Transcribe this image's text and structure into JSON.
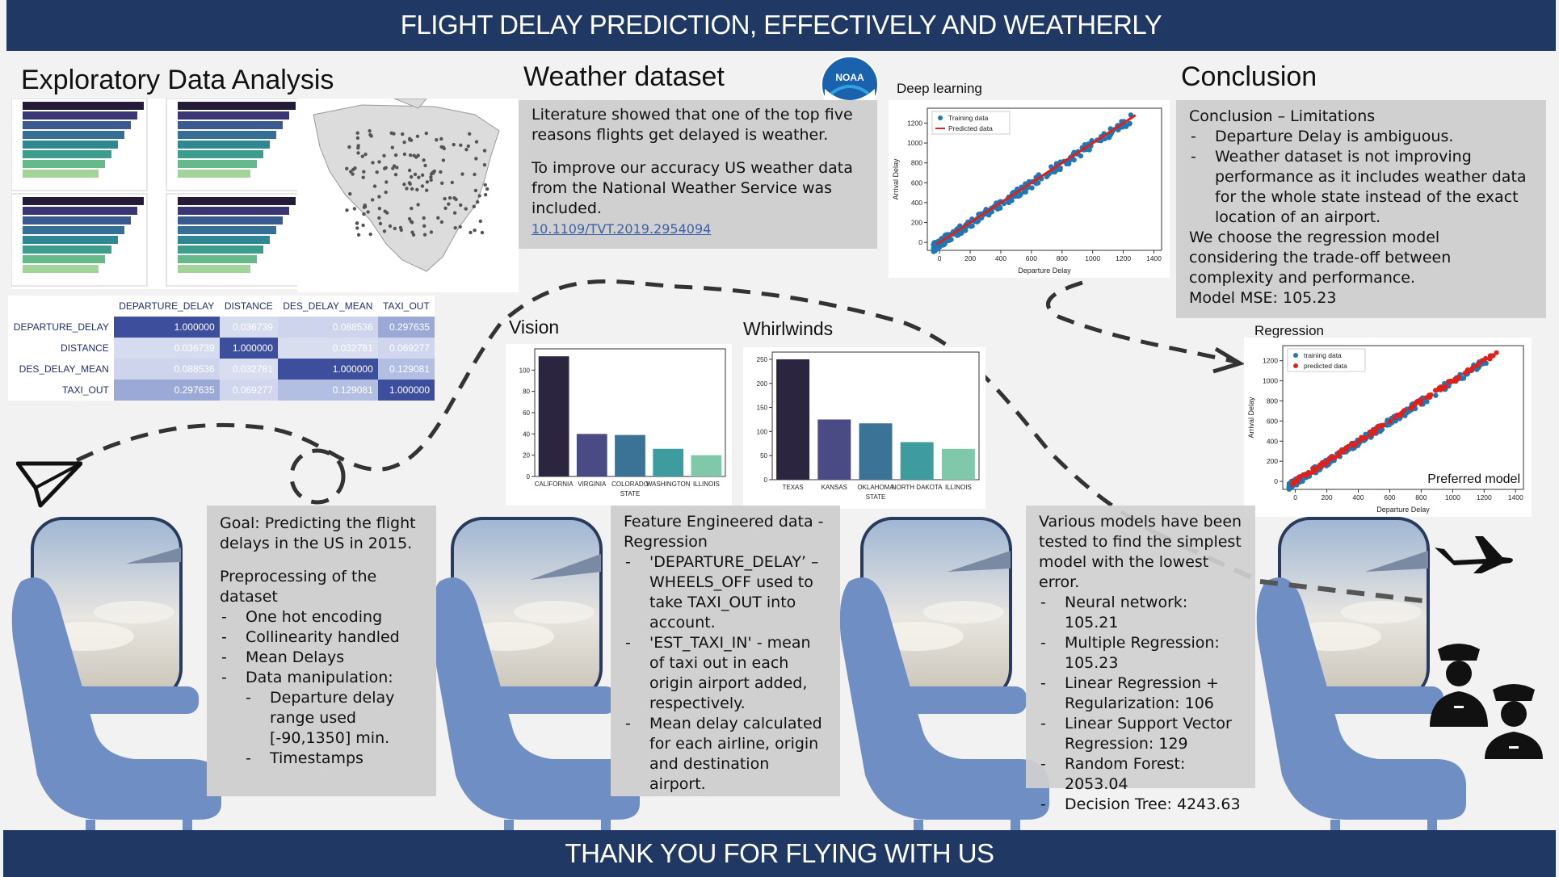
{
  "header": {
    "title": "FLIGHT DELAY PREDICTION, EFFECTIVELY AND WEATHERLY"
  },
  "footer": {
    "text": "THANK YOU FOR FLYING WITH US"
  },
  "eda": {
    "title": "Exploratory Data Analysis",
    "correlation": {
      "columns": [
        "DEPARTURE_DELAY",
        "DISTANCE",
        "DES_DELAY_MEAN",
        "TAXI_OUT"
      ],
      "rows": [
        {
          "label": "DEPARTURE_DELAY",
          "values": [
            "1.000000",
            "0.036739",
            "0.088536",
            "0.297635"
          ]
        },
        {
          "label": "DISTANCE",
          "values": [
            "0.036739",
            "1.000000",
            "0.032781",
            "0.069277"
          ]
        },
        {
          "label": "DES_DELAY_MEAN",
          "values": [
            "0.088536",
            "0.032781",
            "1.000000",
            "0.129081"
          ]
        },
        {
          "label": "TAXI_OUT",
          "values": [
            "0.297635",
            "0.069277",
            "0.129081",
            "1.000000"
          ]
        }
      ],
      "colors": [
        [
          "#3d4e9c",
          "#d6dcef",
          "#cdd4ec",
          "#9ba9d6"
        ],
        [
          "#d6dcef",
          "#3d4e9c",
          "#d8def0",
          "#d0d6ed"
        ],
        [
          "#cdd4ec",
          "#d8def0",
          "#3d4e9c",
          "#b3bfe2"
        ],
        [
          "#9ba9d6",
          "#d0d6ed",
          "#b3bfe2",
          "#3d4e9c"
        ]
      ]
    }
  },
  "weather": {
    "title": "Weather dataset",
    "logo_text": "NOAA",
    "text1": "Literature showed that one of the top five reasons flights get delayed is weather.",
    "text2": "To improve our accuracy US weather data from the National Weather Service was included.",
    "link": "10.1109/TVT.2019.2954094"
  },
  "deep_learning": {
    "title": "Deep learning",
    "legend": [
      "Training data",
      "Predicted data"
    ],
    "xlabel": "Departure Delay",
    "ylabel": "Arrival Delay",
    "xticks": [
      "0",
      "200",
      "400",
      "600",
      "800",
      "1000",
      "1200",
      "1400"
    ],
    "yticks": [
      "0",
      "200",
      "400",
      "600",
      "800",
      "1000",
      "1200"
    ]
  },
  "conclusion": {
    "title": "Conclusion",
    "heading": "Conclusion – Limitations",
    "bullets": [
      "Departure Delay is ambiguous.",
      "Weather dataset is not improving performance as it includes weather data for the whole state instead of the exact location of an airport."
    ],
    "text": "We choose the regression model considering the trade-off between complexity and performance.",
    "mse": "Model MSE: 105.23"
  },
  "regression": {
    "title": "Regression",
    "legend": [
      "training data",
      "predicted data"
    ],
    "xlabel": "Departure Delay",
    "ylabel": "Arrival Delay",
    "note": "Preferred model",
    "xticks": [
      "0",
      "200",
      "400",
      "600",
      "800",
      "1000",
      "1200",
      "1400"
    ],
    "yticks": [
      "0",
      "200",
      "400",
      "600",
      "800",
      "1000",
      "1200"
    ]
  },
  "vision": {
    "title": "Vision",
    "xlabel": "STATE",
    "categories": [
      "CALIFORNIA",
      "VIRGINIA",
      "COLORADO",
      "WASHINGTON",
      "ILLINOIS"
    ],
    "values": [
      113,
      40,
      39,
      26,
      20
    ],
    "yticks": [
      "0",
      "20",
      "40",
      "60",
      "80",
      "100"
    ],
    "ylim": [
      0,
      120
    ],
    "colors": [
      "#2c2540",
      "#4a4a85",
      "#3b7397",
      "#3e9b9e",
      "#7fc8a9"
    ]
  },
  "whirlwinds": {
    "title": "Whirlwinds",
    "xlabel": "STATE",
    "categories": [
      "TEXAS",
      "KANSAS",
      "OKLAHOMA",
      "NORTH DAKOTA",
      "ILLINOIS"
    ],
    "values": [
      250,
      125,
      117,
      78,
      64
    ],
    "yticks": [
      "0",
      "50",
      "100",
      "150",
      "200",
      "250"
    ],
    "ylim": [
      0,
      265
    ],
    "colors": [
      "#2c2540",
      "#4a4a85",
      "#3b7397",
      "#3e9b9e",
      "#7fc8a9"
    ]
  },
  "goal": {
    "intro": "Goal: Predicting the flight delays in the US in 2015.",
    "pre_title": "Preprocessing of the dataset",
    "items": [
      "One hot encoding",
      "Collinearity handled",
      "Mean Delays",
      "Data manipulation:"
    ],
    "sub_items": [
      "Departure delay range used [-90,1350] min.",
      "Timestamps"
    ]
  },
  "features": {
    "title": "Feature Engineered data - Regression",
    "items": [
      "'DEPARTURE_DELAY’ – WHEELS_OFF used to take TAXI_OUT into account.",
      "'EST_TAXI_IN' - mean of taxi out in each origin airport added, respectively.",
      "Mean delay calculated for each airline, origin and destination airport."
    ]
  },
  "models": {
    "intro": "Various models have been tested to find the simplest model with the lowest error.",
    "items": [
      "Neural network: 105.21",
      "Multiple Regression: 105.23",
      "Linear Regression + Regularization: 106",
      "Linear Support Vector Regression: 129",
      "Random Forest: 2053.04",
      "Decision Tree: 4243.63"
    ]
  },
  "colors": {
    "banner": "#1f3864",
    "seat": "#6f8fc4",
    "box": "#d0d0d0",
    "accent_red": "#e0201b"
  }
}
